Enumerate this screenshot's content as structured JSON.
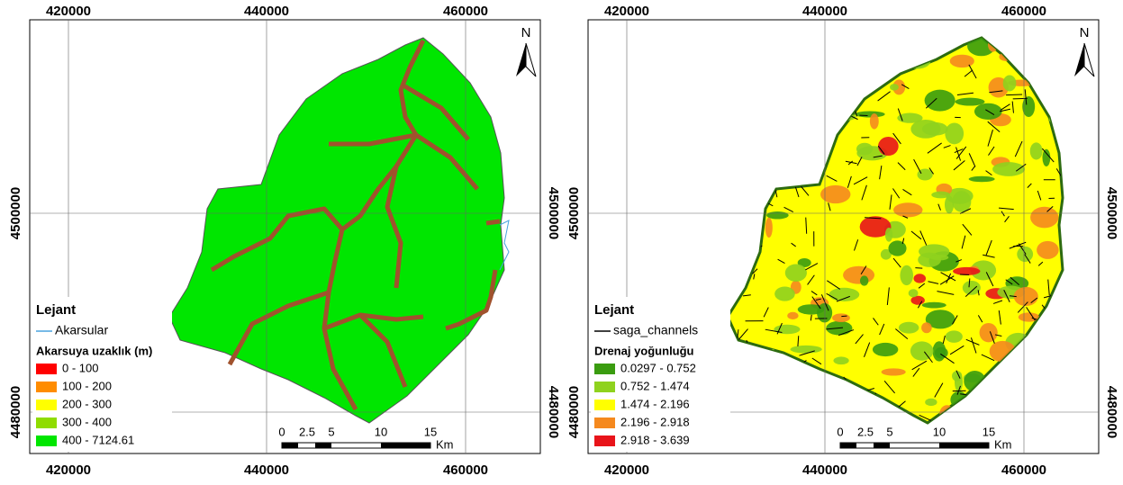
{
  "panels": [
    {
      "x_labels": [
        "420000",
        "440000",
        "460000"
      ],
      "y_labels": [
        "4500000",
        "4480000"
      ],
      "north": "N",
      "legend": {
        "title": "Lejant",
        "line_item": "Akarsular",
        "line_color": "#4aa3df",
        "subtitle": "Akarsuya uzaklık (m)",
        "classes": [
          {
            "label": "0 - 100",
            "color": "#ff0000"
          },
          {
            "label": "100 - 200",
            "color": "#ff8c00"
          },
          {
            "label": "200 - 300",
            "color": "#ffff00"
          },
          {
            "label": "300 - 400",
            "color": "#8fdc00"
          },
          {
            "label": "400 - 7124.61",
            "color": "#00e600"
          }
        ]
      },
      "scale": {
        "ticks": [
          "0",
          "2.5",
          "5",
          "10",
          "15"
        ],
        "unit": "Km"
      }
    },
    {
      "x_labels": [
        "420000",
        "440000",
        "460000"
      ],
      "y_labels": [
        "4500000",
        "4480000"
      ],
      "north": "N",
      "legend": {
        "title": "Lejant",
        "line_item": "saga_channels",
        "line_color": "#000000",
        "subtitle": "Drenaj yoğunluğu",
        "classes": [
          {
            "label": "0.0297 - 0.752",
            "color": "#3a9c10"
          },
          {
            "label": "0.752 - 1.474",
            "color": "#8fd21e"
          },
          {
            "label": "1.474 - 2.196",
            "color": "#ffff00"
          },
          {
            "label": "2.196 - 2.918",
            "color": "#f5891e"
          },
          {
            "label": "2.918 - 3.639",
            "color": "#e8141a"
          }
        ]
      },
      "scale": {
        "ticks": [
          "0",
          "2.5",
          "5",
          "10",
          "15"
        ],
        "unit": "Km"
      }
    }
  ]
}
